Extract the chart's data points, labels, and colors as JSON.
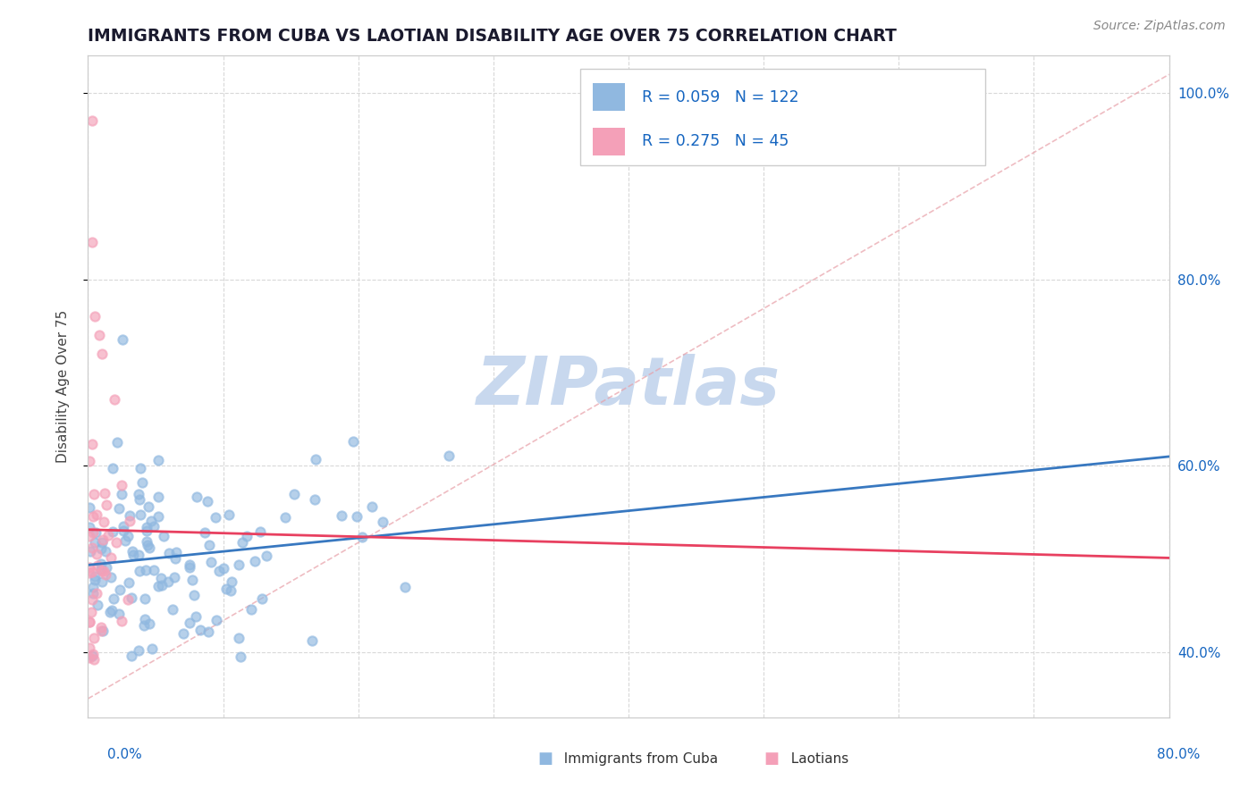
{
  "title": "IMMIGRANTS FROM CUBA VS LAOTIAN DISABILITY AGE OVER 75 CORRELATION CHART",
  "source_text": "Source: ZipAtlas.com",
  "ylabel": "Disability Age Over 75",
  "xaxis_range": [
    0,
    0.8
  ],
  "yaxis_range": [
    0.33,
    1.04
  ],
  "r_cuba": 0.059,
  "n_cuba": 122,
  "r_laotian": 0.275,
  "n_laotian": 45,
  "blue_scatter_color": "#90b8e0",
  "pink_scatter_color": "#f4a0b8",
  "blue_line_color": "#3878c0",
  "pink_line_color": "#e84060",
  "diag_line_color": "#e8a0a8",
  "legend_r_color": "#1565c0",
  "legend_label_color": "#333333",
  "watermark_color": "#c8d8ee",
  "scatter_alpha": 0.65,
  "scatter_size": 55,
  "scatter_linewidth": 1.5,
  "yticks": [
    0.4,
    0.6,
    0.8,
    1.0
  ],
  "ytick_labels": [
    "40.0%",
    "60.0%",
    "80.0%",
    "100.0%"
  ],
  "xtick_left_label": "0.0%",
  "xtick_right_label": "80.0%",
  "bottom_legend_label1": "Immigrants from Cuba",
  "bottom_legend_label2": "Laotians"
}
